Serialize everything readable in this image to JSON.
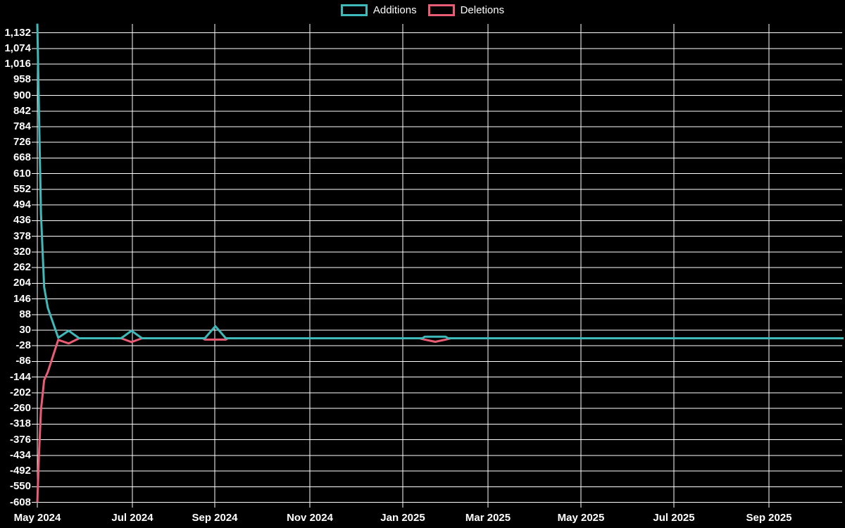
{
  "colors": {
    "background": "#000000",
    "grid": "#ffffff",
    "text": "#ffffff",
    "additions": "#3fb9b9",
    "deletions": "#ea5c74"
  },
  "chart_data": {
    "type": "line",
    "title": "",
    "xlabel": "",
    "ylabel": "",
    "grid": true,
    "legend_position": "top-center",
    "ylim": [
      -608,
      1166
    ],
    "y_step": 58,
    "x_range": "May 2024 - Oct 2025",
    "legend": [
      {
        "name": "Additions",
        "color": "#3fb9b9"
      },
      {
        "name": "Deletions",
        "color": "#ea5c74"
      }
    ],
    "y_ticks": [
      1132,
      1074,
      1016,
      958,
      900,
      842,
      784,
      726,
      668,
      610,
      552,
      494,
      436,
      378,
      320,
      262,
      204,
      146,
      88,
      30,
      -28,
      -86,
      -144,
      -202,
      -260,
      -318,
      -376,
      -434,
      -492,
      -550,
      -608
    ],
    "x_ticks": [
      {
        "label": "May 2024",
        "week": 0
      },
      {
        "label": "Jul 2024",
        "week": 9.08
      },
      {
        "label": "Sep 2024",
        "week": 16.95
      },
      {
        "label": "Nov 2024",
        "week": 26.03
      },
      {
        "label": "Jan 2025",
        "week": 34.9
      },
      {
        "label": "Mar 2025",
        "week": 43.04
      },
      {
        "label": "May 2025",
        "week": 51.92
      },
      {
        "label": "Jul 2025",
        "week": 60.79
      },
      {
        "label": "Sep 2025",
        "week": 69.87
      }
    ],
    "series": [
      {
        "name": "Additions",
        "color": "#3fb9b9",
        "points": [
          [
            0,
            1166
          ],
          [
            0.15,
            860
          ],
          [
            0.35,
            460
          ],
          [
            0.65,
            190
          ],
          [
            1,
            113
          ],
          [
            2,
            2
          ],
          [
            3,
            28
          ],
          [
            4,
            0
          ],
          [
            8,
            0
          ],
          [
            9,
            28
          ],
          [
            10,
            0
          ],
          [
            16,
            0
          ],
          [
            17,
            45
          ],
          [
            18,
            0
          ],
          [
            36.8,
            0
          ],
          [
            37,
            6
          ],
          [
            39,
            6
          ],
          [
            39.2,
            0
          ],
          [
            77,
            0
          ]
        ]
      },
      {
        "name": "Deletions",
        "color": "#ea5c74",
        "points": [
          [
            0,
            -608
          ],
          [
            0.15,
            -440
          ],
          [
            0.35,
            -265
          ],
          [
            0.65,
            -155
          ],
          [
            1,
            -125
          ],
          [
            2,
            -6
          ],
          [
            3,
            -19
          ],
          [
            4,
            0
          ],
          [
            8,
            0
          ],
          [
            9,
            -14
          ],
          [
            10,
            0
          ],
          [
            15.8,
            0
          ],
          [
            16,
            -5
          ],
          [
            18,
            -5
          ],
          [
            18.2,
            0
          ],
          [
            36.5,
            0
          ],
          [
            37,
            -5
          ],
          [
            38,
            -13
          ],
          [
            39,
            -5
          ],
          [
            39.5,
            0
          ],
          [
            77,
            0
          ]
        ]
      }
    ]
  }
}
